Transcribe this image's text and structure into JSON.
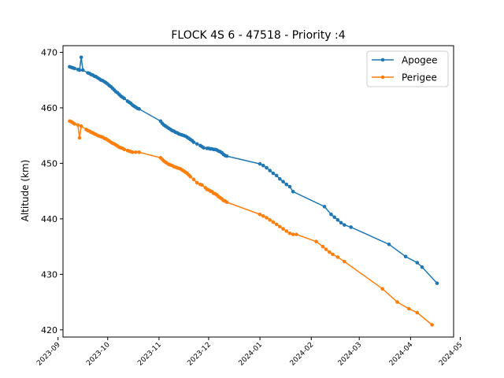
{
  "chart_data": {
    "type": "line",
    "title": "FLOCK 4S 6 - 47518 - Priority :4",
    "xlabel": "",
    "ylabel": "Altitude (km)",
    "xlim": [
      "2023-09-04",
      "2024-04-27"
    ],
    "ylim": [
      418.7,
      471.2
    ],
    "x_ticks": [
      "2023-09",
      "2023-10",
      "2023-11",
      "2023-12",
      "2024-01",
      "2024-02",
      "2024-03",
      "2024-04",
      "2024-05"
    ],
    "y_ticks": [
      420,
      430,
      440,
      450,
      460,
      470
    ],
    "grid": false,
    "legend_position": "top-right",
    "series": [
      {
        "name": "Apogee",
        "color": "#1f77b4",
        "points": [
          [
            "2023-09-08",
            467.4
          ],
          [
            "2023-09-09",
            467.3
          ],
          [
            "2023-09-10",
            467.2
          ],
          [
            "2023-09-11",
            467.1
          ],
          [
            "2023-09-13",
            466.9
          ],
          [
            "2023-09-14",
            466.8
          ],
          [
            "2023-09-15",
            469.1
          ],
          [
            "2023-09-16",
            466.8
          ],
          [
            "2023-09-19",
            466.3
          ],
          [
            "2023-09-20",
            466.2
          ],
          [
            "2023-09-21",
            466.0
          ],
          [
            "2023-09-22",
            465.9
          ],
          [
            "2023-09-23",
            465.7
          ],
          [
            "2023-09-24",
            465.6
          ],
          [
            "2023-09-25",
            465.4
          ],
          [
            "2023-09-26",
            465.2
          ],
          [
            "2023-09-27",
            465.0
          ],
          [
            "2023-09-28",
            464.9
          ],
          [
            "2023-09-29",
            464.7
          ],
          [
            "2023-09-30",
            464.5
          ],
          [
            "2023-10-01",
            464.3
          ],
          [
            "2023-10-02",
            464.0
          ],
          [
            "2023-10-03",
            463.8
          ],
          [
            "2023-10-04",
            463.5
          ],
          [
            "2023-10-05",
            463.2
          ],
          [
            "2023-10-06",
            462.9
          ],
          [
            "2023-10-07",
            462.7
          ],
          [
            "2023-10-08",
            462.4
          ],
          [
            "2023-10-09",
            462.1
          ],
          [
            "2023-10-10",
            461.9
          ],
          [
            "2023-10-11",
            461.7
          ],
          [
            "2023-10-13",
            461.2
          ],
          [
            "2023-10-14",
            461.0
          ],
          [
            "2023-10-15",
            460.8
          ],
          [
            "2023-10-16",
            460.5
          ],
          [
            "2023-10-17",
            460.3
          ],
          [
            "2023-10-18",
            460.1
          ],
          [
            "2023-10-19",
            459.9
          ],
          [
            "2023-10-20",
            459.8
          ],
          [
            "2023-11-02",
            457.6
          ],
          [
            "2023-11-03",
            457.2
          ],
          [
            "2023-11-04",
            456.9
          ],
          [
            "2023-11-05",
            456.7
          ],
          [
            "2023-11-06",
            456.5
          ],
          [
            "2023-11-07",
            456.3
          ],
          [
            "2023-11-08",
            456.1
          ],
          [
            "2023-11-09",
            455.9
          ],
          [
            "2023-11-10",
            455.8
          ],
          [
            "2023-11-11",
            455.6
          ],
          [
            "2023-11-12",
            455.5
          ],
          [
            "2023-11-13",
            455.3
          ],
          [
            "2023-11-14",
            455.2
          ],
          [
            "2023-11-15",
            455.1
          ],
          [
            "2023-11-16",
            455.0
          ],
          [
            "2023-11-17",
            454.9
          ],
          [
            "2023-11-18",
            454.7
          ],
          [
            "2023-11-19",
            454.5
          ],
          [
            "2023-11-20",
            454.3
          ],
          [
            "2023-11-21",
            454.1
          ],
          [
            "2023-11-22",
            453.8
          ],
          [
            "2023-11-24",
            453.5
          ],
          [
            "2023-11-26",
            453.2
          ],
          [
            "2023-11-27",
            453.0
          ],
          [
            "2023-11-28",
            452.8
          ],
          [
            "2023-11-30",
            452.7
          ],
          [
            "2023-12-01",
            452.7
          ],
          [
            "2023-12-02",
            452.6
          ],
          [
            "2023-12-03",
            452.6
          ],
          [
            "2023-12-04",
            452.5
          ],
          [
            "2023-12-05",
            452.5
          ],
          [
            "2023-12-06",
            452.4
          ],
          [
            "2023-12-07",
            452.2
          ],
          [
            "2023-12-08",
            452.1
          ],
          [
            "2023-12-09",
            451.9
          ],
          [
            "2023-12-10",
            451.6
          ],
          [
            "2023-12-11",
            451.4
          ],
          [
            "2023-12-12",
            451.3
          ],
          [
            "2024-01-01",
            449.9
          ],
          [
            "2024-01-03",
            449.6
          ],
          [
            "2024-01-05",
            449.2
          ],
          [
            "2024-01-07",
            448.7
          ],
          [
            "2024-01-09",
            448.2
          ],
          [
            "2024-01-11",
            447.8
          ],
          [
            "2024-01-13",
            447.2
          ],
          [
            "2024-01-15",
            446.7
          ],
          [
            "2024-01-17",
            446.2
          ],
          [
            "2024-01-19",
            445.8
          ],
          [
            "2024-01-21",
            444.9
          ],
          [
            "2024-02-09",
            442.2
          ],
          [
            "2024-02-13",
            440.8
          ],
          [
            "2024-02-15",
            440.3
          ],
          [
            "2024-02-17",
            439.8
          ],
          [
            "2024-02-19",
            439.3
          ],
          [
            "2024-02-21",
            438.9
          ],
          [
            "2024-02-25",
            438.5
          ],
          [
            "2024-03-19",
            435.4
          ],
          [
            "2024-03-29",
            433.2
          ],
          [
            "2024-04-05",
            432.1
          ],
          [
            "2024-04-08",
            431.3
          ],
          [
            "2024-04-17",
            428.4
          ]
        ]
      },
      {
        "name": "Perigee",
        "color": "#ff7f0e",
        "points": [
          [
            "2023-09-08",
            457.6
          ],
          [
            "2023-09-09",
            457.5
          ],
          [
            "2023-09-10",
            457.3
          ],
          [
            "2023-09-11",
            457.1
          ],
          [
            "2023-09-13",
            456.9
          ],
          [
            "2023-09-14",
            454.6
          ],
          [
            "2023-09-15",
            456.7
          ],
          [
            "2023-09-18",
            456.1
          ],
          [
            "2023-09-19",
            455.9
          ],
          [
            "2023-09-20",
            455.8
          ],
          [
            "2023-09-21",
            455.6
          ],
          [
            "2023-09-22",
            455.5
          ],
          [
            "2023-09-23",
            455.3
          ],
          [
            "2023-09-24",
            455.2
          ],
          [
            "2023-09-25",
            455.0
          ],
          [
            "2023-09-26",
            454.9
          ],
          [
            "2023-09-27",
            454.8
          ],
          [
            "2023-09-28",
            454.7
          ],
          [
            "2023-09-29",
            454.5
          ],
          [
            "2023-09-30",
            454.4
          ],
          [
            "2023-10-01",
            454.2
          ],
          [
            "2023-10-02",
            454.0
          ],
          [
            "2023-10-03",
            453.8
          ],
          [
            "2023-10-04",
            453.6
          ],
          [
            "2023-10-05",
            453.5
          ],
          [
            "2023-10-06",
            453.3
          ],
          [
            "2023-10-07",
            453.1
          ],
          [
            "2023-10-08",
            452.9
          ],
          [
            "2023-10-09",
            452.8
          ],
          [
            "2023-10-10",
            452.7
          ],
          [
            "2023-10-11",
            452.5
          ],
          [
            "2023-10-13",
            452.3
          ],
          [
            "2023-10-14",
            452.2
          ],
          [
            "2023-10-15",
            452.1
          ],
          [
            "2023-10-16",
            452.0
          ],
          [
            "2023-10-18",
            452.0
          ],
          [
            "2023-10-20",
            452.0
          ],
          [
            "2023-11-02",
            451.0
          ],
          [
            "2023-11-03",
            450.7
          ],
          [
            "2023-11-04",
            450.4
          ],
          [
            "2023-11-05",
            450.2
          ],
          [
            "2023-11-06",
            450.0
          ],
          [
            "2023-11-07",
            449.8
          ],
          [
            "2023-11-08",
            449.7
          ],
          [
            "2023-11-09",
            449.6
          ],
          [
            "2023-11-10",
            449.4
          ],
          [
            "2023-11-11",
            449.3
          ],
          [
            "2023-11-12",
            449.2
          ],
          [
            "2023-11-13",
            449.1
          ],
          [
            "2023-11-14",
            449.0
          ],
          [
            "2023-11-15",
            448.8
          ],
          [
            "2023-11-16",
            448.6
          ],
          [
            "2023-11-17",
            448.4
          ],
          [
            "2023-11-18",
            448.2
          ],
          [
            "2023-11-19",
            447.9
          ],
          [
            "2023-11-20",
            447.6
          ],
          [
            "2023-11-22",
            447.1
          ],
          [
            "2023-11-24",
            446.5
          ],
          [
            "2023-11-26",
            446.2
          ],
          [
            "2023-11-27",
            446.1
          ],
          [
            "2023-11-29",
            445.6
          ],
          [
            "2023-11-30",
            445.3
          ],
          [
            "2023-12-01",
            445.2
          ],
          [
            "2023-12-02",
            445.0
          ],
          [
            "2023-12-03",
            444.9
          ],
          [
            "2023-12-04",
            444.6
          ],
          [
            "2023-12-05",
            444.5
          ],
          [
            "2023-12-06",
            444.3
          ],
          [
            "2023-12-07",
            444.0
          ],
          [
            "2023-12-08",
            443.8
          ],
          [
            "2023-12-09",
            443.6
          ],
          [
            "2023-12-10",
            443.3
          ],
          [
            "2023-12-11",
            443.2
          ],
          [
            "2023-12-12",
            443.0
          ],
          [
            "2024-01-01",
            440.8
          ],
          [
            "2024-01-03",
            440.5
          ],
          [
            "2024-01-05",
            440.2
          ],
          [
            "2024-01-07",
            439.8
          ],
          [
            "2024-01-09",
            439.4
          ],
          [
            "2024-01-11",
            439.0
          ],
          [
            "2024-01-13",
            438.6
          ],
          [
            "2024-01-15",
            438.2
          ],
          [
            "2024-01-17",
            437.8
          ],
          [
            "2024-01-19",
            437.4
          ],
          [
            "2024-01-21",
            437.2
          ],
          [
            "2024-01-23",
            437.2
          ],
          [
            "2024-02-04",
            435.9
          ],
          [
            "2024-02-08",
            435.0
          ],
          [
            "2024-02-10",
            434.5
          ],
          [
            "2024-02-12",
            434.0
          ],
          [
            "2024-02-14",
            433.6
          ],
          [
            "2024-02-17",
            433.1
          ],
          [
            "2024-02-21",
            432.3
          ],
          [
            "2024-03-15",
            427.4
          ],
          [
            "2024-03-24",
            425.0
          ],
          [
            "2024-03-31",
            423.8
          ],
          [
            "2024-04-05",
            423.1
          ],
          [
            "2024-04-14",
            420.9
          ]
        ]
      }
    ]
  }
}
